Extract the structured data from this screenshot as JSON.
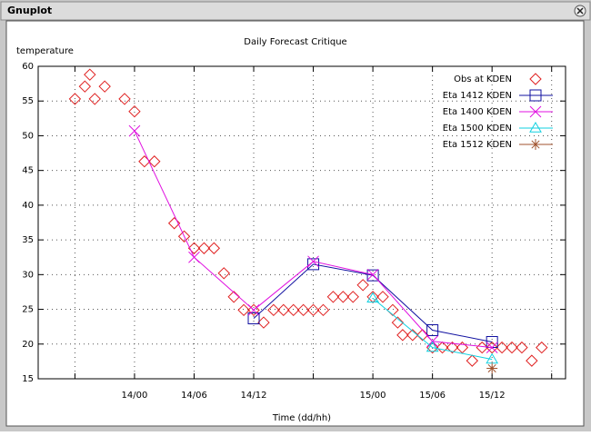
{
  "window": {
    "title": "Gnuplot"
  },
  "chart_data": {
    "type": "line",
    "title": "Daily Forecast Critique",
    "x_label": "Time (dd/hh)",
    "y_label": "temperature",
    "xlim": [
      -9.7,
      43.4
    ],
    "ylim": [
      15,
      60
    ],
    "xticks": [
      {
        "value": -6,
        "label": null
      },
      {
        "value": 0,
        "label": "14/00"
      },
      {
        "value": 6,
        "label": "14/06"
      },
      {
        "value": 12,
        "label": "14/12"
      },
      {
        "value": 18,
        "label": null
      },
      {
        "value": 24,
        "label": "15/00"
      },
      {
        "value": 30,
        "label": "15/06"
      },
      {
        "value": 36,
        "label": "15/12"
      },
      {
        "value": 42,
        "label": null
      }
    ],
    "yticks": [
      15,
      20,
      25,
      30,
      35,
      40,
      45,
      50,
      55,
      60
    ],
    "grid": true,
    "legend": "top-right",
    "series": [
      {
        "name": "Obs at KDEN",
        "color": "#e02020",
        "marker": "diamond",
        "line": false,
        "x": [
          -6,
          -5,
          -4.5,
          -4,
          -3,
          -1,
          0,
          1,
          2,
          4,
          5,
          6,
          7,
          8,
          9,
          10,
          11,
          12,
          13,
          14,
          15,
          16,
          17,
          18,
          19,
          20,
          21,
          22,
          23,
          24,
          25,
          26,
          26.5,
          27,
          28,
          29,
          30,
          31,
          32,
          33,
          34,
          35,
          36,
          37,
          38,
          39,
          40,
          41
        ],
        "values": [
          55.3,
          57.1,
          58.8,
          55.3,
          57.1,
          55.3,
          53.5,
          46.3,
          46.3,
          37.4,
          35.5,
          33.8,
          33.8,
          33.8,
          30.2,
          26.8,
          24.9,
          24.9,
          23.1,
          24.9,
          24.9,
          24.9,
          24.9,
          24.9,
          24.9,
          26.8,
          26.8,
          26.8,
          28.5,
          26.8,
          26.8,
          24.9,
          23.1,
          21.3,
          21.3,
          21.3,
          19.5,
          19.5,
          19.5,
          19.5,
          17.6,
          19.5,
          19.5,
          19.5,
          19.5,
          19.5,
          17.6,
          19.5
        ]
      },
      {
        "name": "Eta 1412 KDEN",
        "color": "#1010a0",
        "marker": "square",
        "line": true,
        "x": [
          12,
          18,
          24,
          30,
          36
        ],
        "values": [
          23.7,
          31.5,
          29.9,
          22.0,
          20.3
        ]
      },
      {
        "name": "Eta 1400 KDEN",
        "color": "#e010e0",
        "marker": "cross",
        "line": true,
        "x": [
          0,
          6,
          12,
          18,
          24,
          30,
          36
        ],
        "values": [
          50.7,
          32.5,
          24.9,
          31.9,
          30.0,
          20.4,
          19.5
        ]
      },
      {
        "name": "Eta 1500 KDEN",
        "color": "#10d0e0",
        "marker": "triangle",
        "line": true,
        "x": [
          24,
          30,
          36
        ],
        "values": [
          26.6,
          19.5,
          17.8
        ]
      },
      {
        "name": "Eta 1512 KDEN",
        "color": "#a0522d",
        "marker": "star",
        "line": true,
        "x": [
          36
        ],
        "values": [
          16.5
        ]
      }
    ]
  }
}
